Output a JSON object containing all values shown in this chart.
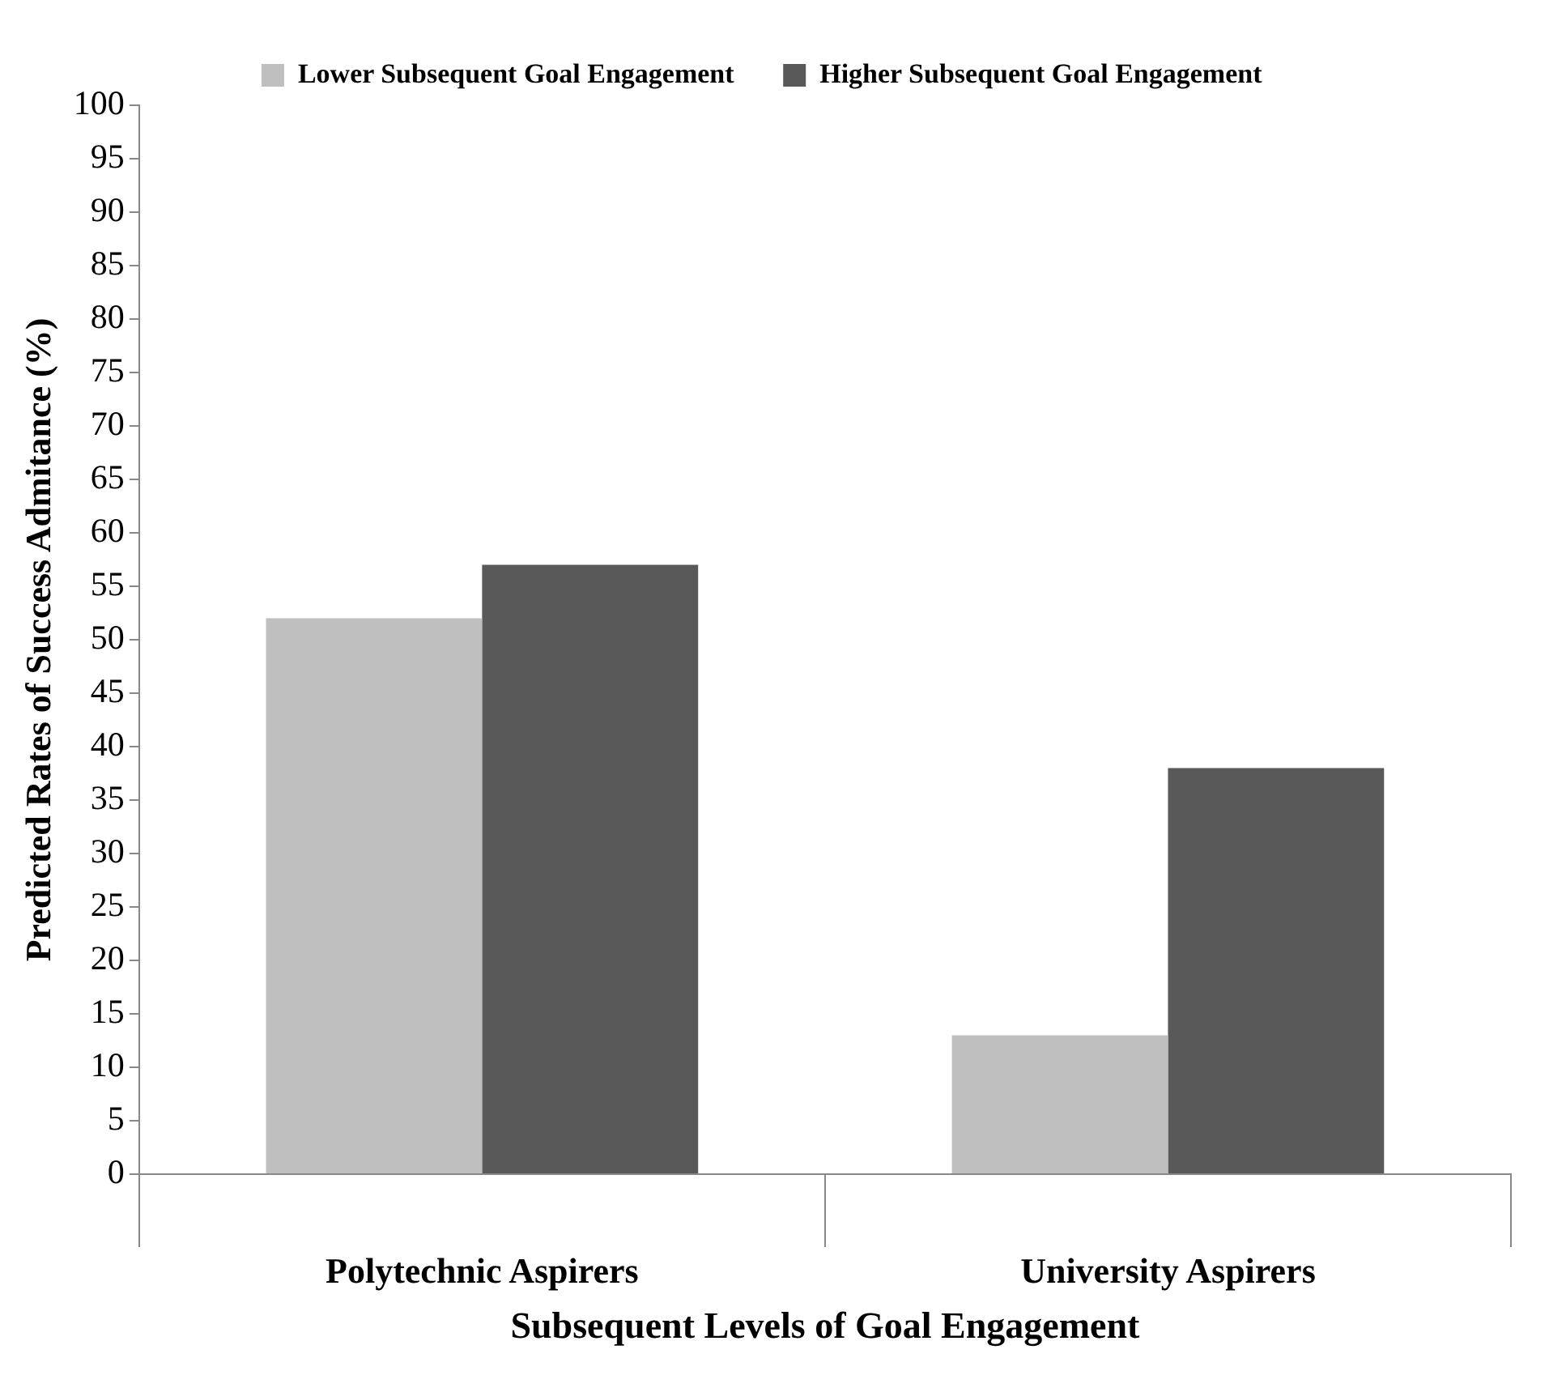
{
  "chart_data": {
    "type": "bar",
    "xlabel": "Subsequent Levels of Goal Engagement",
    "ylabel": "Predicted Rates of Success Admitance (%)",
    "categories": [
      "Polytechnic Aspirers",
      "University Aspirers"
    ],
    "series": [
      {
        "name": "Lower Subsequent Goal Engagement",
        "color": "#bfbfbf",
        "values": [
          52,
          13
        ]
      },
      {
        "name": "Higher Subsequent Goal Engagement",
        "color": "#595959",
        "values": [
          57,
          38
        ]
      }
    ],
    "ylim": [
      0,
      100
    ],
    "yticks": [
      0,
      5,
      10,
      15,
      20,
      25,
      30,
      35,
      40,
      45,
      50,
      55,
      60,
      65,
      70,
      75,
      80,
      85,
      90,
      95,
      100
    ],
    "grid": false,
    "legend": "top"
  }
}
